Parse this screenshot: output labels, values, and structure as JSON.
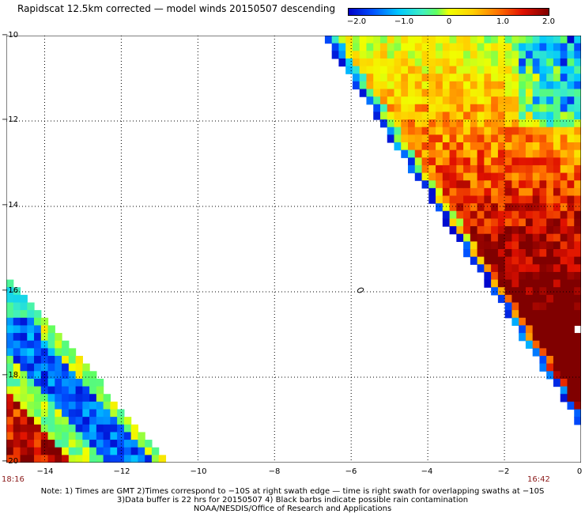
{
  "title": "Rapidscat 12.5km corrected — model winds 20150507 descending",
  "colorbar": {
    "ticks": [
      "−2.0",
      "−1.0",
      "0",
      "1.0",
      "2.0"
    ],
    "tick_values": [
      -2.0,
      -1.0,
      0,
      1.0,
      2.0
    ],
    "range": [
      -2.0,
      2.0
    ],
    "colors": [
      "#0000c8",
      "#0050ff",
      "#00c8ff",
      "#40f0c0",
      "#60ff60",
      "#f0ff00",
      "#ffd000",
      "#ff7000",
      "#e01000",
      "#800000"
    ]
  },
  "chart_data": {
    "type": "heatmap",
    "title": "Rapidscat 12.5km corrected — model winds 20150507 descending",
    "xlim": [
      -15,
      0
    ],
    "ylim": [
      -20,
      -10
    ],
    "x_ticks": [
      "−14",
      "−12",
      "−10",
      "−8",
      "−6",
      "−4",
      "−2",
      "0"
    ],
    "x_tick_values": [
      -14,
      -12,
      -10,
      -8,
      -6,
      -4,
      -2,
      0
    ],
    "y_ticks": [
      "−10",
      "−12",
      "−14",
      "−16",
      "−18",
      "−20"
    ],
    "y_tick_values": [
      -10,
      -12,
      -14,
      -16,
      -18,
      -20
    ],
    "value_range": [
      -2.0,
      2.0
    ],
    "grid": true,
    "swaths": [
      {
        "time": "18:16",
        "region": "lower-left",
        "typical_range": [
          -2.0,
          1.8
        ]
      },
      {
        "time": "16:42",
        "region": "upper-right",
        "typical_range": [
          -1.5,
          2.0
        ]
      }
    ]
  },
  "time_left": "18:16",
  "time_right": "16:42",
  "notes": [
    "Note: 1) Times are GMT 2)Times correspond to −10S at right swath edge — time is right swath for overlapping swaths at −10S",
    "3)Data buffer is 22 hrs for 20150507 4) Black barbs indicate possible rain contamination",
    "NOAA/NESDIS/Office of Research and Applications"
  ]
}
